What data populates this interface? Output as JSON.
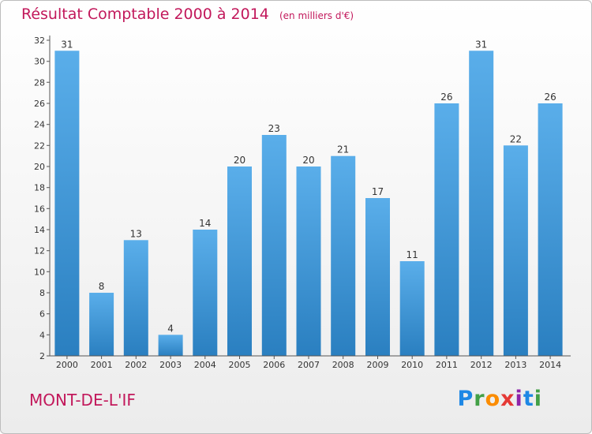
{
  "header": {
    "title": "Résultat Comptable 2000 à 2014",
    "unit": "(en milliers d'€)"
  },
  "footer": {
    "town": "MONT-DE-L'IF",
    "logo_letters": [
      "P",
      "r",
      "o",
      "x",
      "i",
      "t",
      "i"
    ]
  },
  "colors": {
    "bar_top": "#5aaeea",
    "bar_bottom": "#2a7fc0",
    "title": "#c2185b"
  },
  "chart_data": {
    "type": "bar",
    "title": "Résultat Comptable 2000 à 2014",
    "xlabel": "",
    "ylabel": "",
    "categories": [
      "2000",
      "2001",
      "2002",
      "2003",
      "2004",
      "2005",
      "2006",
      "2007",
      "2008",
      "2009",
      "2010",
      "2011",
      "2012",
      "2013",
      "2014"
    ],
    "values": [
      31,
      8,
      13,
      4,
      14,
      20,
      23,
      20,
      21,
      17,
      11,
      26,
      31,
      22,
      26
    ],
    "ylim": [
      2,
      32
    ],
    "yticks": [
      2,
      4,
      6,
      8,
      10,
      12,
      14,
      16,
      18,
      20,
      22,
      24,
      26,
      28,
      30,
      32
    ],
    "grid": false,
    "legend": "none"
  }
}
